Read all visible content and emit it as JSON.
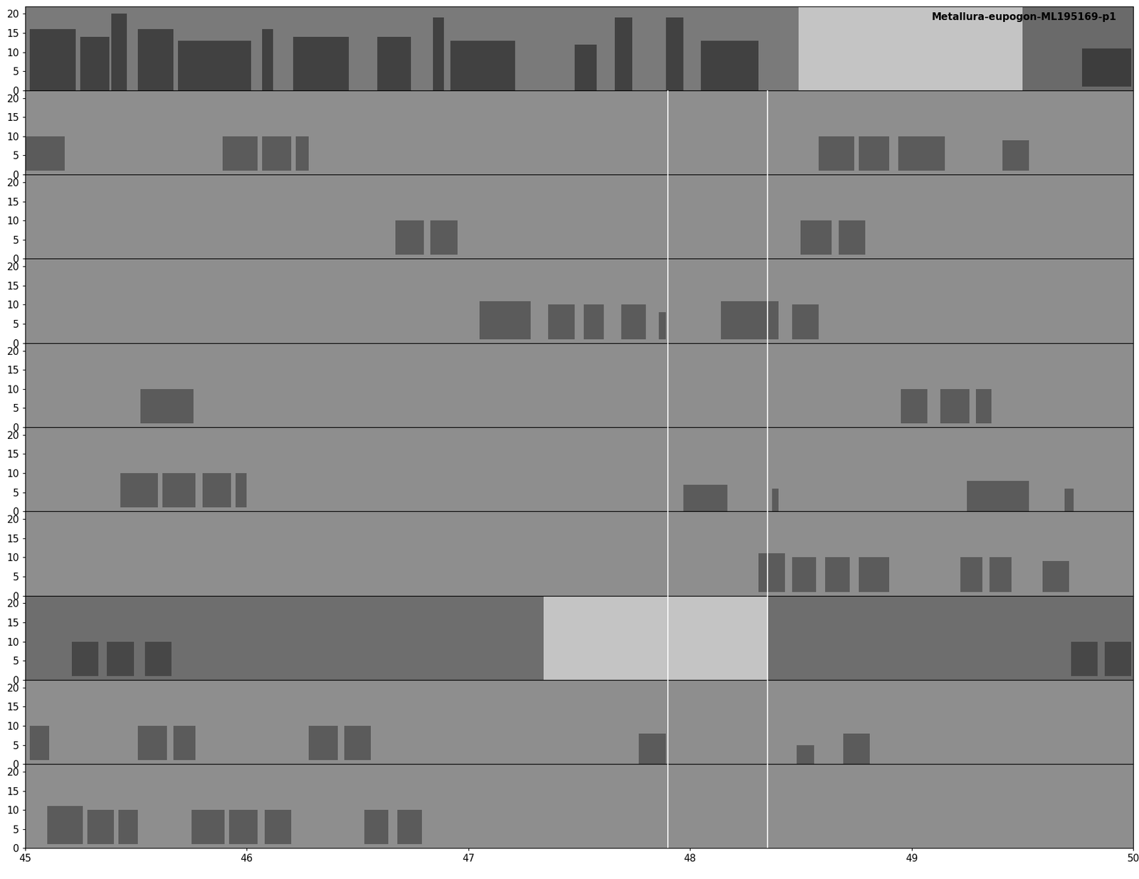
{
  "chart_data": [
    {
      "type": "spectrogram",
      "title": "Metallura-eupogon-ML195169-p1",
      "xlim": [
        0,
        5
      ],
      "ylim": [
        0,
        22
      ],
      "yticks": [
        0,
        5,
        10,
        15,
        20
      ],
      "tick_labels": "y",
      "color": "#2e2e2e",
      "regions": [
        {
          "start": 0,
          "end": 3.49,
          "color": "#7a7a7a"
        },
        {
          "start": 3.49,
          "end": 4.5,
          "color": "#c4c4c4"
        },
        {
          "start": 4.5,
          "end": 5,
          "color": "#6a6a6a"
        }
      ],
      "lines": [],
      "calls": [
        [
          0.02,
          0.23,
          0,
          16
        ],
        [
          0.25,
          0.38,
          0,
          14
        ],
        [
          0.39,
          0.46,
          0,
          20
        ],
        [
          0.51,
          0.67,
          0,
          16
        ],
        [
          0.69,
          1.02,
          0,
          13
        ],
        [
          1.07,
          1.12,
          0,
          16
        ],
        [
          1.21,
          1.46,
          0,
          14
        ],
        [
          1.59,
          1.74,
          0,
          14
        ],
        [
          1.84,
          1.89,
          0,
          19
        ],
        [
          1.92,
          2.21,
          0,
          13
        ],
        [
          2.48,
          2.58,
          0,
          12
        ],
        [
          2.66,
          2.74,
          0,
          19
        ],
        [
          2.89,
          2.97,
          0,
          19
        ],
        [
          3.05,
          3.31,
          0,
          13
        ],
        [
          4.77,
          4.99,
          1,
          11
        ]
      ]
    },
    {
      "type": "spectrogram",
      "xlim": [
        5,
        10
      ],
      "ylim": [
        0,
        22
      ],
      "yticks": [
        0,
        5,
        10,
        15,
        20
      ],
      "tick_labels": "y",
      "color": "#4a4a4a",
      "regions": [
        {
          "start": 5,
          "end": 10,
          "color": "#8e8e8e"
        }
      ],
      "lines": [
        7.9,
        8.35
      ],
      "calls": [
        [
          5.0,
          5.18,
          1,
          10
        ],
        [
          5.89,
          6.05,
          1,
          10
        ],
        [
          6.07,
          6.2,
          1,
          10
        ],
        [
          6.22,
          6.28,
          1,
          10
        ],
        [
          8.58,
          8.74,
          1,
          10
        ],
        [
          8.76,
          8.9,
          1,
          10
        ],
        [
          8.94,
          9.15,
          1,
          10
        ],
        [
          9.41,
          9.53,
          1,
          9
        ]
      ]
    },
    {
      "type": "spectrogram",
      "xlim": [
        10,
        15
      ],
      "ylim": [
        0,
        22
      ],
      "yticks": [
        0,
        5,
        10,
        15,
        20
      ],
      "tick_labels": "y",
      "color": "#4a4a4a",
      "regions": [
        {
          "start": 10,
          "end": 15,
          "color": "#8e8e8e"
        }
      ],
      "lines": [
        12.9,
        13.35
      ],
      "calls": [
        [
          11.67,
          11.8,
          1,
          10
        ],
        [
          11.83,
          11.95,
          1,
          10
        ],
        [
          13.5,
          13.64,
          1,
          10
        ],
        [
          13.67,
          13.79,
          1,
          10
        ]
      ]
    },
    {
      "type": "spectrogram",
      "xlim": [
        15,
        20
      ],
      "ylim": [
        0,
        22
      ],
      "yticks": [
        0,
        5,
        10,
        15,
        20
      ],
      "tick_labels": "y",
      "color": "#4a4a4a",
      "regions": [
        {
          "start": 15,
          "end": 20,
          "color": "#8e8e8e"
        }
      ],
      "lines": [
        17.9,
        18.35
      ],
      "calls": [
        [
          17.05,
          17.28,
          1,
          11
        ],
        [
          17.36,
          17.48,
          1,
          10
        ],
        [
          17.52,
          17.61,
          1,
          10
        ],
        [
          17.69,
          17.8,
          1,
          10
        ],
        [
          17.86,
          17.89,
          1,
          8
        ],
        [
          18.14,
          18.4,
          1,
          11
        ],
        [
          18.46,
          18.58,
          1,
          10
        ]
      ]
    },
    {
      "type": "spectrogram",
      "xlim": [
        20,
        25
      ],
      "ylim": [
        0,
        22
      ],
      "yticks": [
        0,
        5,
        10,
        15,
        20
      ],
      "tick_labels": "y",
      "color": "#4a4a4a",
      "regions": [
        {
          "start": 20,
          "end": 25,
          "color": "#8e8e8e"
        }
      ],
      "lines": [
        22.9,
        23.35
      ],
      "calls": [
        [
          20.52,
          20.76,
          1,
          10
        ],
        [
          23.95,
          24.07,
          1,
          10
        ],
        [
          24.13,
          24.26,
          1,
          10
        ],
        [
          24.29,
          24.36,
          1,
          10
        ]
      ]
    },
    {
      "type": "spectrogram",
      "xlim": [
        25,
        30
      ],
      "ylim": [
        0,
        22
      ],
      "yticks": [
        0,
        5,
        10,
        15,
        20
      ],
      "tick_labels": "y",
      "color": "#4a4a4a",
      "regions": [
        {
          "start": 25,
          "end": 30,
          "color": "#8e8e8e"
        }
      ],
      "lines": [
        27.9,
        28.35
      ],
      "calls": [
        [
          25.43,
          25.6,
          1,
          10
        ],
        [
          25.62,
          25.77,
          1,
          10
        ],
        [
          25.8,
          25.93,
          1,
          10
        ],
        [
          25.95,
          26.0,
          1,
          10
        ],
        [
          27.97,
          28.17,
          0,
          7
        ],
        [
          28.37,
          28.4,
          0,
          6
        ],
        [
          29.25,
          29.53,
          0,
          8
        ],
        [
          29.69,
          29.73,
          0,
          6
        ]
      ]
    },
    {
      "type": "spectrogram",
      "xlim": [
        30,
        35
      ],
      "ylim": [
        0,
        22
      ],
      "yticks": [
        0,
        5,
        10,
        15,
        20
      ],
      "tick_labels": "y",
      "color": "#4a4a4a",
      "regions": [
        {
          "start": 30,
          "end": 35,
          "color": "#8e8e8e"
        }
      ],
      "lines": [
        32.9,
        33.35
      ],
      "calls": [
        [
          33.31,
          33.43,
          1,
          11
        ],
        [
          33.46,
          33.57,
          1,
          10
        ],
        [
          33.61,
          33.72,
          1,
          10
        ],
        [
          33.76,
          33.9,
          1,
          10
        ],
        [
          34.22,
          34.32,
          1,
          10
        ],
        [
          34.35,
          34.45,
          1,
          10
        ],
        [
          34.59,
          34.71,
          1,
          9
        ]
      ]
    },
    {
      "type": "spectrogram",
      "xlim": [
        35,
        40
      ],
      "ylim": [
        0,
        22
      ],
      "yticks": [
        0,
        5,
        10,
        15,
        20
      ],
      "tick_labels": "y",
      "color": "#3a3a3a",
      "regions": [
        {
          "start": 35,
          "end": 37.34,
          "color": "#6e6e6e"
        },
        {
          "start": 37.34,
          "end": 38.35,
          "color": "#c4c4c4"
        },
        {
          "start": 38.35,
          "end": 40,
          "color": "#6e6e6e"
        }
      ],
      "lines": [
        37.9,
        38.35
      ],
      "calls": [
        [
          35.21,
          35.33,
          1,
          10
        ],
        [
          35.37,
          35.49,
          1,
          10
        ],
        [
          35.54,
          35.66,
          1,
          10
        ],
        [
          39.72,
          39.84,
          1,
          10
        ],
        [
          39.87,
          39.99,
          1,
          10
        ]
      ]
    },
    {
      "type": "spectrogram",
      "xlim": [
        40,
        45
      ],
      "ylim": [
        0,
        22
      ],
      "yticks": [
        0,
        5,
        10,
        15,
        20
      ],
      "tick_labels": "y",
      "color": "#4a4a4a",
      "regions": [
        {
          "start": 40,
          "end": 45,
          "color": "#8e8e8e"
        }
      ],
      "lines": [
        42.9,
        43.35
      ],
      "calls": [
        [
          40.02,
          40.11,
          1,
          10
        ],
        [
          40.51,
          40.64,
          1,
          10
        ],
        [
          40.67,
          40.77,
          1,
          10
        ],
        [
          41.28,
          41.41,
          1,
          10
        ],
        [
          41.44,
          41.56,
          1,
          10
        ],
        [
          42.77,
          42.89,
          0,
          8
        ],
        [
          43.48,
          43.56,
          0,
          5
        ],
        [
          43.69,
          43.81,
          0,
          8
        ]
      ]
    },
    {
      "type": "spectrogram",
      "xlim": [
        45,
        50
      ],
      "ylim": [
        0,
        22
      ],
      "yticks": [
        0,
        5,
        10,
        15,
        20
      ],
      "xticks": [
        45,
        46,
        47,
        48,
        49,
        50
      ],
      "color": "#4a4a4a",
      "regions": [
        {
          "start": 45,
          "end": 50,
          "color": "#8e8e8e"
        }
      ],
      "lines": [
        47.9,
        48.35
      ],
      "calls": [
        [
          45.1,
          45.26,
          1,
          11
        ],
        [
          45.28,
          45.4,
          1,
          10
        ],
        [
          45.42,
          45.51,
          1,
          10
        ],
        [
          45.75,
          45.9,
          1,
          10
        ],
        [
          45.92,
          46.05,
          1,
          10
        ],
        [
          46.08,
          46.2,
          1,
          10
        ],
        [
          46.53,
          46.64,
          1,
          10
        ],
        [
          46.68,
          46.79,
          1,
          10
        ]
      ]
    }
  ]
}
